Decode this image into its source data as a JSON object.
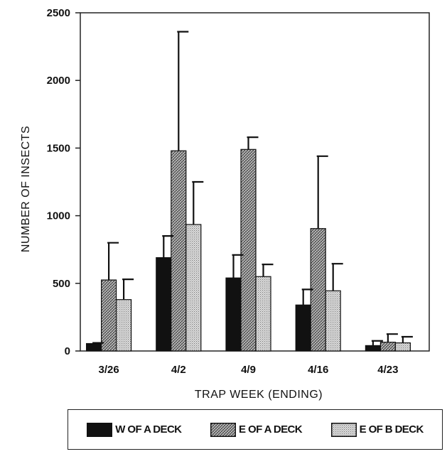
{
  "chart_data": {
    "type": "bar",
    "title": "",
    "xlabel": "TRAP WEEK (ENDING)",
    "ylabel": "NUMBER OF INSECTS",
    "ylim": [
      0,
      2500
    ],
    "yticks": [
      "0",
      "500",
      "1000",
      "1500",
      "2000",
      "2500"
    ],
    "grid": false,
    "legend_position": "bottom",
    "categories": [
      "3/26",
      "4/2",
      "4/9",
      "4/16",
      "4/23"
    ],
    "series": [
      {
        "name": "W OF A DECK",
        "values": [
          55,
          690,
          540,
          340,
          40
        ],
        "error_upper": [
          60,
          850,
          710,
          455,
          75
        ],
        "fill": "solid",
        "color": "#111111"
      },
      {
        "name": "E OF A DECK",
        "values": [
          525,
          1480,
          1490,
          905,
          65
        ],
        "error_upper": [
          800,
          2360,
          1580,
          1440,
          125
        ],
        "fill": "cross-hatch",
        "color": "#555555"
      },
      {
        "name": "E OF B DECK",
        "values": [
          380,
          935,
          550,
          445,
          60
        ],
        "error_upper": [
          530,
          1250,
          640,
          645,
          105
        ],
        "fill": "stipple",
        "color": "#aaaaaa"
      }
    ]
  }
}
